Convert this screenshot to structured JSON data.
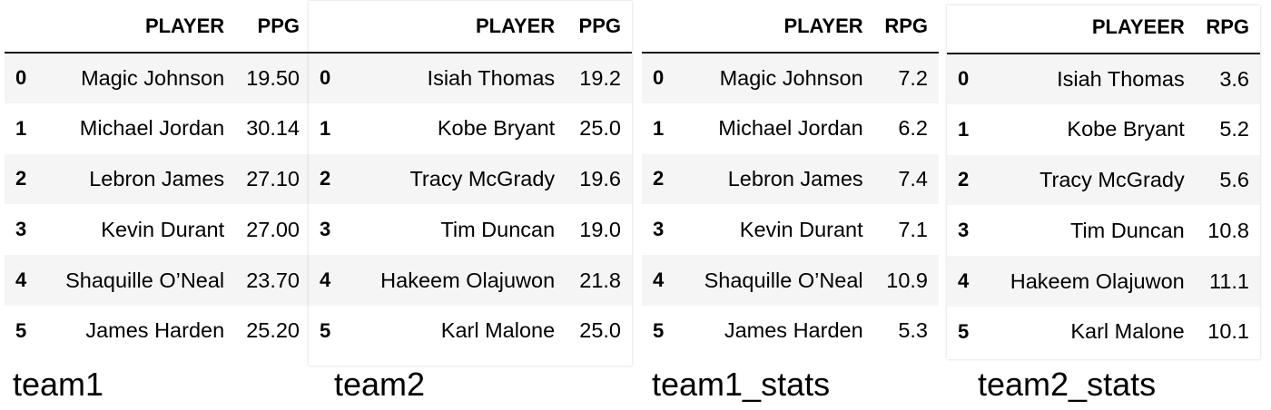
{
  "tables": [
    {
      "caption": "team1",
      "columns": [
        "PLAYER",
        "PPG"
      ],
      "rows": [
        {
          "index": "0",
          "player": "Magic Johnson",
          "value": "19.50"
        },
        {
          "index": "1",
          "player": "Michael Jordan",
          "value": "30.14"
        },
        {
          "index": "2",
          "player": "Lebron James",
          "value": "27.10"
        },
        {
          "index": "3",
          "player": "Kevin Durant",
          "value": "27.00"
        },
        {
          "index": "4",
          "player": "Shaquille O’Neal",
          "value": "23.70"
        },
        {
          "index": "5",
          "player": "James Harden",
          "value": "25.20"
        }
      ]
    },
    {
      "caption": "team2",
      "columns": [
        "PLAYER",
        "PPG"
      ],
      "rows": [
        {
          "index": "0",
          "player": "Isiah Thomas",
          "value": "19.2"
        },
        {
          "index": "1",
          "player": "Kobe Bryant",
          "value": "25.0"
        },
        {
          "index": "2",
          "player": "Tracy McGrady",
          "value": "19.6"
        },
        {
          "index": "3",
          "player": "Tim Duncan",
          "value": "19.0"
        },
        {
          "index": "4",
          "player": "Hakeem Olajuwon",
          "value": "21.8"
        },
        {
          "index": "5",
          "player": "Karl Malone",
          "value": "25.0"
        }
      ]
    },
    {
      "caption": "team1_stats",
      "columns": [
        "PLAYER",
        "RPG"
      ],
      "rows": [
        {
          "index": "0",
          "player": "Magic Johnson",
          "value": "7.2"
        },
        {
          "index": "1",
          "player": "Michael Jordan",
          "value": "6.2"
        },
        {
          "index": "2",
          "player": "Lebron James",
          "value": "7.4"
        },
        {
          "index": "3",
          "player": "Kevin Durant",
          "value": "7.1"
        },
        {
          "index": "4",
          "player": "Shaquille O’Neal",
          "value": "10.9"
        },
        {
          "index": "5",
          "player": "James Harden",
          "value": "5.3"
        }
      ]
    },
    {
      "caption": "team2_stats",
      "columns": [
        "PLAYEER",
        "RPG"
      ],
      "rows": [
        {
          "index": "0",
          "player": "Isiah Thomas",
          "value": "3.6"
        },
        {
          "index": "1",
          "player": "Kobe Bryant",
          "value": "5.2"
        },
        {
          "index": "2",
          "player": "Tracy McGrady",
          "value": "5.6"
        },
        {
          "index": "3",
          "player": "Tim Duncan",
          "value": "10.8"
        },
        {
          "index": "4",
          "player": "Hakeem Olajuwon",
          "value": "11.1"
        },
        {
          "index": "5",
          "player": "Karl Malone",
          "value": "10.1"
        }
      ]
    }
  ]
}
